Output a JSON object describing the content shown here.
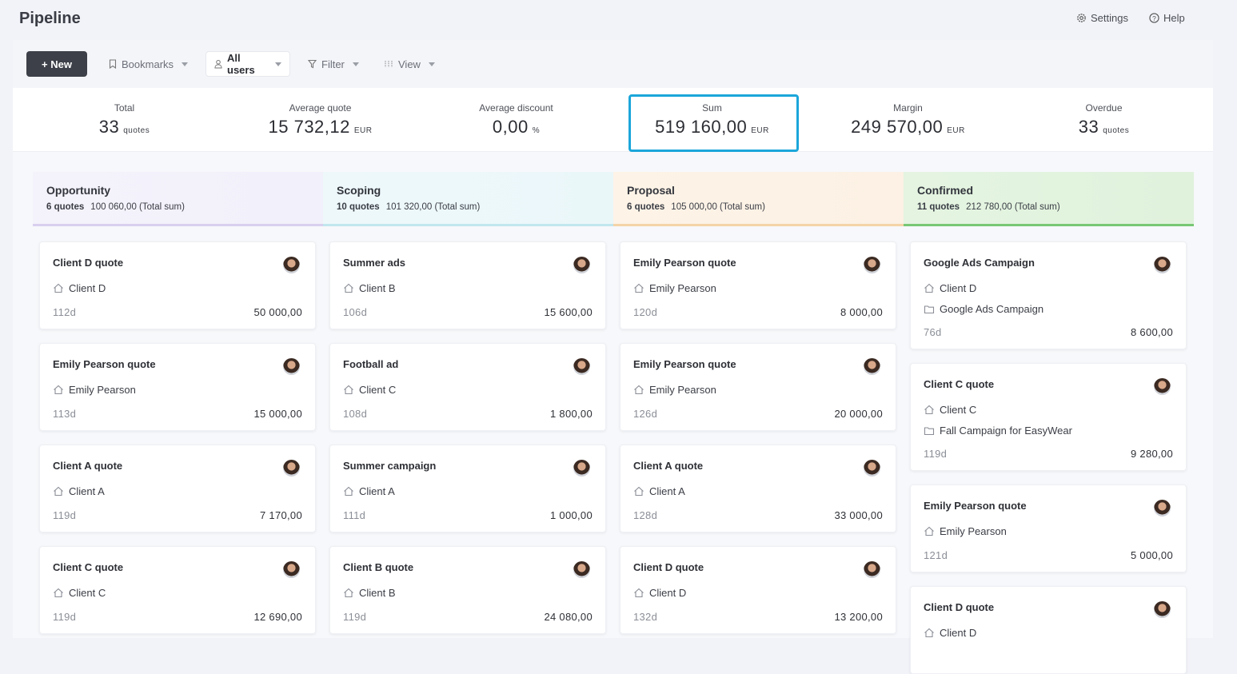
{
  "header": {
    "title": "Pipeline",
    "settings": "Settings",
    "help": "Help"
  },
  "toolbar": {
    "new": "+ New",
    "bookmarks": "Bookmarks",
    "users": "All users",
    "filter": "Filter",
    "view": "View"
  },
  "stats": [
    {
      "label": "Total",
      "value": "33",
      "unit": "quotes"
    },
    {
      "label": "Average quote",
      "value": "15 732,12",
      "unit": "EUR"
    },
    {
      "label": "Average discount",
      "value": "0,00",
      "unit": "%"
    },
    {
      "label": "Sum",
      "value": "519 160,00",
      "unit": "EUR"
    },
    {
      "label": "Margin",
      "value": "249 570,00",
      "unit": "EUR"
    },
    {
      "label": "Overdue",
      "value": "33",
      "unit": "quotes"
    }
  ],
  "columns": [
    {
      "name": "Opportunity",
      "count": "6 quotes",
      "total": "100 060,00 (Total sum)",
      "cards": [
        {
          "title": "Client D quote",
          "client": "Client D",
          "age": "112d",
          "amount": "50 000,00"
        },
        {
          "title": "Emily Pearson quote",
          "client": "Emily Pearson",
          "age": "113d",
          "amount": "15 000,00"
        },
        {
          "title": "Client A quote",
          "client": "Client A",
          "age": "119d",
          "amount": "7 170,00"
        },
        {
          "title": "Client C quote",
          "client": "Client C",
          "age": "119d",
          "amount": "12 690,00"
        }
      ]
    },
    {
      "name": "Scoping",
      "count": "10 quotes",
      "total": "101 320,00 (Total sum)",
      "cards": [
        {
          "title": "Summer ads",
          "client": "Client B",
          "age": "106d",
          "amount": "15 600,00"
        },
        {
          "title": "Football ad",
          "client": "Client C",
          "age": "108d",
          "amount": "1 800,00"
        },
        {
          "title": "Summer campaign",
          "client": "Client A",
          "age": "111d",
          "amount": "1 000,00"
        },
        {
          "title": "Client B quote",
          "client": "Client B",
          "age": "119d",
          "amount": "24 080,00"
        }
      ]
    },
    {
      "name": "Proposal",
      "count": "6 quotes",
      "total": "105 000,00 (Total sum)",
      "cards": [
        {
          "title": "Emily Pearson quote",
          "client": "Emily Pearson",
          "age": "120d",
          "amount": "8 000,00"
        },
        {
          "title": "Emily Pearson quote",
          "client": "Emily Pearson",
          "age": "126d",
          "amount": "20 000,00"
        },
        {
          "title": "Client A quote",
          "client": "Client A",
          "age": "128d",
          "amount": "33 000,00"
        },
        {
          "title": "Client D quote",
          "client": "Client D",
          "age": "132d",
          "amount": "13 200,00"
        }
      ]
    },
    {
      "name": "Confirmed",
      "count": "11 quotes",
      "total": "212 780,00 (Total sum)",
      "cards": [
        {
          "title": "Google Ads Campaign",
          "client": "Client D",
          "project": "Google Ads Campaign",
          "age": "76d",
          "amount": "8 600,00"
        },
        {
          "title": "Client C quote",
          "client": "Client C",
          "project": "Fall Campaign for EasyWear",
          "age": "119d",
          "amount": "9 280,00"
        },
        {
          "title": "Emily Pearson quote",
          "client": "Emily Pearson",
          "age": "121d",
          "amount": "5 000,00"
        },
        {
          "title": "Client D quote",
          "client": "Client D"
        }
      ]
    }
  ]
}
